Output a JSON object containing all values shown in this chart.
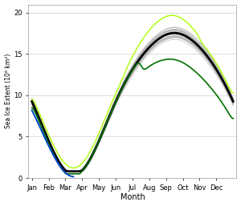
{
  "title": "",
  "xlabel": "Month",
  "ylabel": "Sea Ice Extent (10⁶ km²)",
  "ylim": [
    0,
    21
  ],
  "yticks": [
    0,
    5,
    10,
    15,
    20
  ],
  "months": [
    "Jan",
    "Feb",
    "Mar",
    "Apr",
    "May",
    "Jun",
    "Jul",
    "Aug",
    "Sep",
    "Oct",
    "Nov",
    "Dec"
  ],
  "background_color": "#ffffff",
  "grid_color": "#d0d0d0",
  "mean_color": "#000000",
  "highlight_high_color": "#aaff00",
  "highlight_low_color": "#007000",
  "highlight_recent_color": "#0044cc",
  "gray_color": "#b0b0b0",
  "num_gray_lines": 28,
  "mean_linewidth": 2.0,
  "highlight_linewidth": 1.0,
  "gray_linewidth": 0.5
}
